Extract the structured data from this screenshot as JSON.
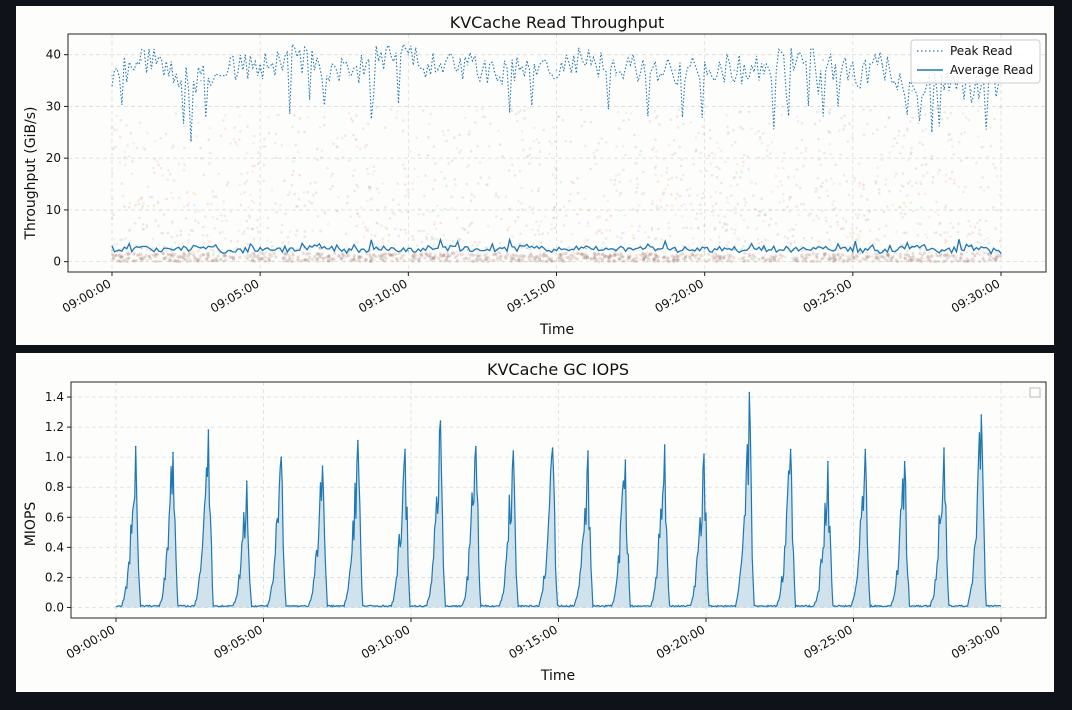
{
  "colors": {
    "page_background": "#0f1219",
    "panel_background": "#fdfdfb",
    "series": "#1f77b4",
    "scatter": [
      "#1f77b4",
      "#ff7f0e",
      "#2ca02c",
      "#d62728",
      "#9467bd",
      "#8c564b",
      "#e377c2"
    ]
  },
  "chart_data": [
    {
      "type": "line",
      "title": "KVCache Read Throughput",
      "xlabel": "Time",
      "ylabel": "Throughput (GiB/s)",
      "x_range": [
        "09:00:00",
        "09:30:00"
      ],
      "xticks": [
        "09:00:00",
        "09:05:00",
        "09:10:00",
        "09:15:00",
        "09:20:00",
        "09:25:00",
        "09:30:00"
      ],
      "ylim": [
        -2,
        44
      ],
      "yticks": [
        0,
        10,
        20,
        30,
        40
      ],
      "grid": true,
      "legend_position": "top-right",
      "background_scatter": "dense faint multicolored per-request read samples, 0 to 30 GiB/s",
      "series": [
        {
          "name": "Peak Read",
          "style": "dotted",
          "x": [
            "09:00:00",
            "09:01:00",
            "09:02:00",
            "09:03:00",
            "09:04:00",
            "09:05:00",
            "09:06:00",
            "09:07:00",
            "09:08:00",
            "09:09:00",
            "09:10:00",
            "09:11:00",
            "09:12:00",
            "09:13:00",
            "09:14:00",
            "09:15:00",
            "09:16:00",
            "09:17:00",
            "09:18:00",
            "09:19:00",
            "09:20:00",
            "09:21:00",
            "09:22:00",
            "09:23:00",
            "09:24:00",
            "09:25:00",
            "09:26:00",
            "09:27:00",
            "09:28:00",
            "09:29:00",
            "09:30:00"
          ],
          "values": [
            36,
            39,
            37,
            35,
            38,
            37,
            40,
            38,
            36,
            39,
            40,
            37,
            38,
            36,
            38,
            37,
            39,
            36,
            38,
            37,
            38,
            37,
            38,
            39,
            39,
            36,
            38,
            33,
            36,
            33,
            35
          ]
        },
        {
          "name": "Average Read",
          "style": "solid",
          "x": [
            "09:00:00",
            "09:01:00",
            "09:02:00",
            "09:03:00",
            "09:04:00",
            "09:05:00",
            "09:06:00",
            "09:07:00",
            "09:08:00",
            "09:09:00",
            "09:10:00",
            "09:11:00",
            "09:12:00",
            "09:13:00",
            "09:14:00",
            "09:15:00",
            "09:16:00",
            "09:17:00",
            "09:18:00",
            "09:19:00",
            "09:20:00",
            "09:21:00",
            "09:22:00",
            "09:23:00",
            "09:24:00",
            "09:25:00",
            "09:26:00",
            "09:27:00",
            "09:28:00",
            "09:29:00",
            "09:30:00"
          ],
          "values": [
            2.2,
            2.6,
            2.1,
            2.8,
            2.0,
            2.5,
            2.3,
            2.7,
            2.2,
            2.6,
            2.1,
            2.8,
            2.3,
            2.4,
            2.6,
            2.2,
            2.5,
            2.3,
            2.7,
            2.2,
            2.4,
            2.3,
            2.5,
            2.2,
            2.6,
            2.4,
            2.1,
            2.8,
            2.0,
            2.9,
            1.5
          ]
        }
      ]
    },
    {
      "type": "area",
      "title": "KVCache GC IOPS",
      "xlabel": "Time",
      "ylabel": "MIOPS",
      "x_range": [
        "09:00:00",
        "09:30:00"
      ],
      "xticks": [
        "09:00:00",
        "09:05:00",
        "09:10:00",
        "09:15:00",
        "09:20:00",
        "09:25:00",
        "09:30:00"
      ],
      "ylim": [
        -0.07,
        1.5
      ],
      "yticks": [
        "0.0",
        "0.2",
        "0.4",
        "0.6",
        "0.8",
        "1.0",
        "1.2",
        "1.4"
      ],
      "grid": true,
      "legend_position": "top-right",
      "baseline": 0.01,
      "series": [
        {
          "peak_times": [
            "09:00:40",
            "09:01:56",
            "09:03:08",
            "09:04:26",
            "09:05:36",
            "09:07:00",
            "09:08:12",
            "09:09:48",
            "09:11:00",
            "09:12:12",
            "09:13:28",
            "09:14:48",
            "09:16:00",
            "09:17:16",
            "09:18:36",
            "09:19:56",
            "09:21:28",
            "09:22:52",
            "09:24:08",
            "09:25:24",
            "09:26:44",
            "09:28:04",
            "09:29:20"
          ],
          "peak_values": [
            1.07,
            1.03,
            1.18,
            0.84,
            1.0,
            0.94,
            1.11,
            1.05,
            1.24,
            1.07,
            1.04,
            1.06,
            1.04,
            0.98,
            1.08,
            1.02,
            1.43,
            1.05,
            0.97,
            1.05,
            0.97,
            1.06,
            1.28
          ]
        }
      ]
    }
  ]
}
